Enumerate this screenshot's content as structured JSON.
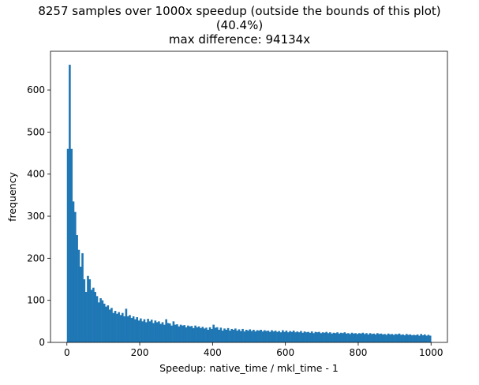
{
  "chart_data": {
    "type": "bar",
    "title_lines": [
      "8257 samples over 1000x speedup (outside the bounds of this plot)",
      "(40.4%)",
      "max difference: 94134x"
    ],
    "xlabel": "Speedup: native_time / mkl_time - 1",
    "ylabel": "frequency",
    "xlim": [
      -45,
      1045
    ],
    "ylim": [
      0,
      692
    ],
    "x_ticks": [
      0,
      200,
      400,
      600,
      800,
      1000
    ],
    "y_ticks": [
      0,
      100,
      200,
      300,
      400,
      500,
      600
    ],
    "bin_width": 5,
    "bar_color": "#1f77b4",
    "grid": false,
    "bins_start": 0,
    "values": [
      460,
      660,
      460,
      335,
      310,
      255,
      220,
      180,
      212,
      150,
      120,
      158,
      150,
      125,
      130,
      120,
      110,
      95,
      105,
      100,
      92,
      85,
      88,
      78,
      82,
      70,
      75,
      68,
      72,
      65,
      70,
      62,
      80,
      62,
      65,
      58,
      62,
      55,
      60,
      52,
      57,
      50,
      55,
      48,
      56,
      50,
      54,
      46,
      52,
      48,
      50,
      44,
      48,
      42,
      55,
      46,
      45,
      40,
      50,
      42,
      43,
      38,
      42,
      40,
      41,
      36,
      40,
      38,
      39,
      34,
      40,
      36,
      38,
      34,
      37,
      33,
      35,
      30,
      36,
      32,
      42,
      35,
      36,
      30,
      35,
      28,
      33,
      30,
      34,
      28,
      32,
      30,
      33,
      28,
      31,
      27,
      32,
      26,
      30,
      28,
      31,
      27,
      30,
      26,
      29,
      28,
      30,
      26,
      29,
      27,
      28,
      25,
      29,
      26,
      28,
      25,
      27,
      24,
      29,
      25,
      28,
      24,
      27,
      25,
      28,
      24,
      26,
      24,
      27,
      23,
      26,
      24,
      25,
      23,
      26,
      22,
      25,
      24,
      25,
      22,
      24,
      23,
      25,
      22,
      24,
      21,
      23,
      22,
      24,
      21,
      23,
      22,
      24,
      21,
      22,
      20,
      23,
      21,
      22,
      20,
      22,
      21,
      23,
      20,
      22,
      19,
      22,
      20,
      21,
      19,
      22,
      20,
      21,
      19,
      20,
      18,
      21,
      19,
      20,
      18,
      20,
      19,
      21,
      18,
      19,
      17,
      20,
      18,
      19,
      17,
      18,
      17,
      19,
      16,
      20,
      17,
      19,
      16,
      18,
      16
    ]
  }
}
